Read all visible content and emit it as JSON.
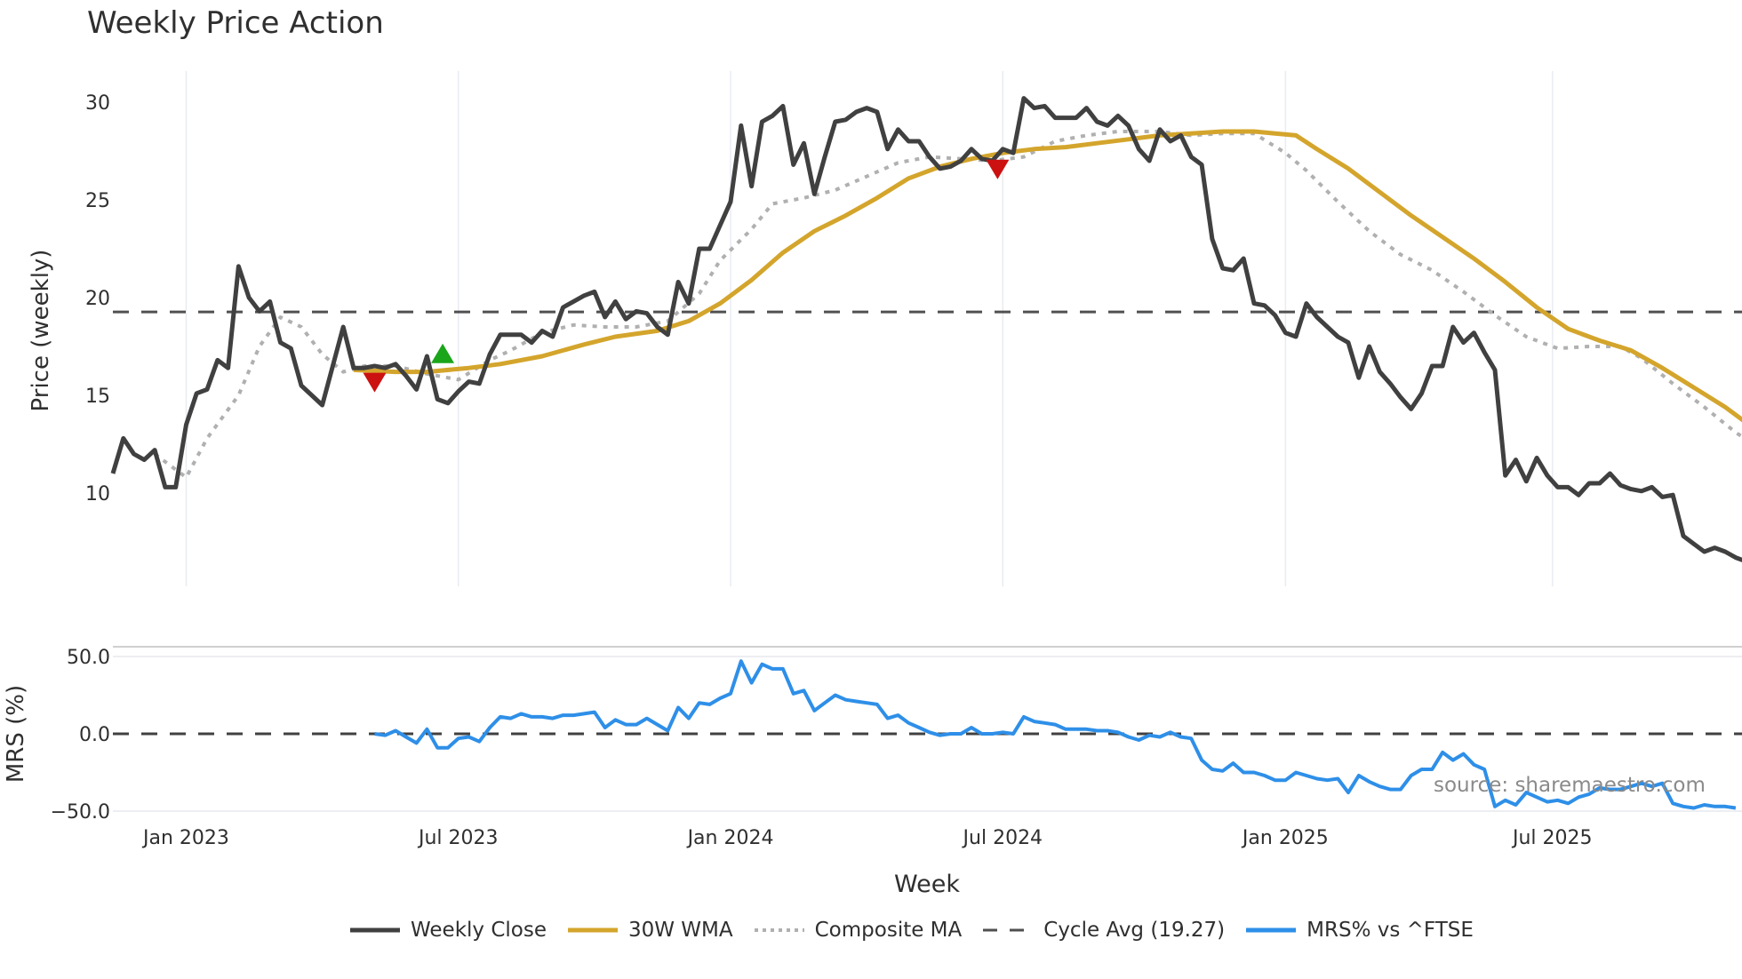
{
  "chart_data": {
    "type": "line",
    "title": "Weekly Price Action",
    "xlabel": "Week",
    "panels": [
      {
        "id": "price",
        "ylabel": "Price (weekly)",
        "yticks": [
          10,
          15,
          20,
          25,
          30
        ],
        "ylim": [
          4.3,
          32.7
        ],
        "grid": "vertical"
      },
      {
        "id": "mrs",
        "ylabel": "MRS (%)",
        "yticks": [
          "50.0",
          "0.0",
          "−50.0"
        ],
        "ytick_values": [
          50,
          0,
          -50
        ],
        "ylim": [
          -55,
          57
        ]
      }
    ],
    "xticks": [
      {
        "label": "Jan 2023",
        "week": 7
      },
      {
        "label": "Jul 2023",
        "week": 33
      },
      {
        "label": "Jan 2024",
        "week": 59
      },
      {
        "label": "Jul 2024",
        "week": 85
      },
      {
        "label": "Jan 2025",
        "week": 112
      },
      {
        "label": "Jul 2025",
        "week": 137.5
      }
    ],
    "week_count": 157,
    "series": [
      {
        "name": "Weekly Close",
        "color": "#404040",
        "style": "solid",
        "panel": "price",
        "values": [
          11.0,
          12.8,
          12.0,
          11.7,
          12.2,
          10.3,
          10.3,
          13.5,
          15.1,
          15.3,
          16.8,
          16.4,
          21.6,
          20.0,
          19.3,
          19.8,
          17.7,
          17.4,
          15.5,
          15.0,
          14.5,
          16.5,
          18.5,
          16.4,
          16.4,
          16.5,
          16.4,
          16.6,
          16.0,
          15.3,
          17.0,
          14.8,
          14.6,
          15.2,
          15.7,
          15.6,
          17.1,
          18.1,
          18.1,
          18.1,
          17.7,
          18.3,
          18.0,
          19.5,
          19.8,
          20.1,
          20.3,
          19.0,
          19.8,
          18.9,
          19.3,
          19.2,
          18.5,
          18.1,
          20.8,
          19.7,
          22.5,
          22.5,
          23.7,
          24.9,
          28.8,
          25.7,
          29.0,
          29.3,
          29.8,
          26.8,
          27.9,
          25.3,
          27.2,
          29.0,
          29.1,
          29.5,
          29.7,
          29.5,
          27.6,
          28.6,
          28.0,
          28.0,
          27.2,
          26.6,
          26.7,
          27.0,
          27.6,
          27.1,
          27.0,
          27.6,
          27.4,
          30.2,
          29.7,
          29.8,
          29.2,
          29.2,
          29.2,
          29.7,
          29.0,
          28.8,
          29.3,
          28.8,
          27.6,
          27.0,
          28.6,
          28.0,
          28.3,
          27.2,
          26.8,
          23.0,
          21.5,
          21.4,
          22.0,
          19.7,
          19.6,
          19.1,
          18.2,
          18.0,
          19.7,
          19.0,
          18.5,
          18.0,
          17.7,
          15.9,
          17.5,
          16.2,
          15.6,
          14.9,
          14.3,
          15.1,
          16.5,
          16.5,
          18.5,
          17.7,
          18.2,
          17.2,
          16.3,
          10.9,
          11.7,
          10.6,
          11.8,
          10.9,
          10.3,
          10.3,
          9.9,
          10.5,
          10.5,
          11.0,
          10.4,
          10.2,
          10.1,
          10.3,
          9.8,
          9.9,
          7.8,
          7.4,
          7.0,
          7.2,
          7.0,
          6.7,
          6.5
        ]
      },
      {
        "name": "30W WMA",
        "color": "#D4A52C",
        "style": "solid",
        "panel": "price",
        "points": [
          [
            23,
            16.3
          ],
          [
            27,
            16.2
          ],
          [
            30,
            16.2
          ],
          [
            34,
            16.4
          ],
          [
            37,
            16.6
          ],
          [
            41,
            17.0
          ],
          [
            45,
            17.6
          ],
          [
            48,
            18.0
          ],
          [
            52,
            18.3
          ],
          [
            55,
            18.8
          ],
          [
            58,
            19.7
          ],
          [
            61,
            20.9
          ],
          [
            64,
            22.3
          ],
          [
            67,
            23.4
          ],
          [
            70,
            24.2
          ],
          [
            73,
            25.1
          ],
          [
            76,
            26.1
          ],
          [
            79,
            26.7
          ],
          [
            82,
            27.1
          ],
          [
            85,
            27.4
          ],
          [
            88,
            27.6
          ],
          [
            91,
            27.7
          ],
          [
            94,
            27.9
          ],
          [
            97,
            28.1
          ],
          [
            100,
            28.3
          ],
          [
            103,
            28.4
          ],
          [
            106,
            28.5
          ],
          [
            109,
            28.5
          ],
          [
            111,
            28.4
          ],
          [
            113,
            28.3
          ],
          [
            115,
            27.6
          ],
          [
            118,
            26.6
          ],
          [
            121,
            25.4
          ],
          [
            124,
            24.2
          ],
          [
            127,
            23.1
          ],
          [
            130,
            22.0
          ],
          [
            133,
            20.8
          ],
          [
            136,
            19.5
          ],
          [
            139,
            18.4
          ],
          [
            142,
            17.8
          ],
          [
            145,
            17.3
          ],
          [
            148,
            16.4
          ],
          [
            151,
            15.4
          ],
          [
            154,
            14.4
          ],
          [
            156,
            13.6
          ]
        ]
      },
      {
        "name": "Composite MA",
        "color": "#B0B0B0",
        "style": "dotted",
        "panel": "price",
        "points": [
          [
            4,
            12.0
          ],
          [
            7,
            10.8
          ],
          [
            9,
            12.8
          ],
          [
            12,
            15.0
          ],
          [
            14,
            17.5
          ],
          [
            16,
            19.0
          ],
          [
            18,
            18.5
          ],
          [
            20,
            17.1
          ],
          [
            22,
            16.2
          ],
          [
            24,
            16.5
          ],
          [
            27,
            16.5
          ],
          [
            30,
            16.1
          ],
          [
            33,
            15.8
          ],
          [
            36,
            16.8
          ],
          [
            38,
            17.3
          ],
          [
            41,
            18.2
          ],
          [
            44,
            18.6
          ],
          [
            47,
            18.5
          ],
          [
            50,
            18.5
          ],
          [
            53,
            18.8
          ],
          [
            56,
            20.2
          ],
          [
            58,
            21.9
          ],
          [
            61,
            23.5
          ],
          [
            63,
            24.8
          ],
          [
            66,
            25.1
          ],
          [
            69,
            25.5
          ],
          [
            72,
            26.2
          ],
          [
            75,
            26.9
          ],
          [
            78,
            27.2
          ],
          [
            81,
            27.1
          ],
          [
            84,
            27.0
          ],
          [
            87,
            27.2
          ],
          [
            90,
            28.0
          ],
          [
            93,
            28.3
          ],
          [
            96,
            28.5
          ],
          [
            100,
            28.5
          ],
          [
            103,
            28.3
          ],
          [
            106,
            28.4
          ],
          [
            109,
            28.4
          ],
          [
            112,
            27.4
          ],
          [
            114,
            26.5
          ],
          [
            117,
            24.9
          ],
          [
            120,
            23.4
          ],
          [
            123,
            22.2
          ],
          [
            126,
            21.4
          ],
          [
            129,
            20.3
          ],
          [
            132,
            19.1
          ],
          [
            135,
            18.0
          ],
          [
            138,
            17.4
          ],
          [
            141,
            17.5
          ],
          [
            144,
            17.5
          ],
          [
            146,
            16.9
          ],
          [
            149,
            15.6
          ],
          [
            152,
            14.4
          ],
          [
            155,
            13.1
          ],
          [
            157,
            12.4
          ]
        ]
      },
      {
        "name": "Cycle Avg (19.27)",
        "color": "#505050",
        "style": "dashed",
        "panel": "price",
        "value": 19.27
      },
      {
        "name": "MRS% vs ^FTSE",
        "color": "#2E8FE8",
        "style": "solid",
        "panel": "mrs",
        "values_start_week": 25,
        "values": [
          0,
          -1,
          2,
          -2,
          -6,
          3,
          -9,
          -9,
          -3,
          -2,
          -5,
          4,
          11,
          10,
          13,
          11,
          11,
          10,
          12,
          12,
          13,
          14,
          4,
          9,
          6,
          6,
          10,
          6,
          2,
          17,
          10,
          20,
          19,
          23,
          26,
          47,
          33,
          45,
          42,
          42,
          26,
          28,
          15,
          20,
          25,
          22,
          21,
          20,
          19,
          10,
          12,
          7,
          4,
          1,
          -1,
          0,
          0,
          4,
          0,
          0,
          1,
          0,
          11,
          8,
          7,
          6,
          3,
          3,
          3,
          2,
          2,
          1,
          -2,
          -4,
          -1,
          -2,
          1,
          -2,
          -3,
          -17,
          -23,
          -24,
          -19,
          -25,
          -25,
          -27,
          -30,
          -30,
          -25,
          -27,
          -29,
          -30,
          -29,
          -38,
          -27,
          -31,
          -34,
          -36,
          -36,
          -27,
          -23,
          -23,
          -12,
          -17,
          -13,
          -20,
          -23,
          -47,
          -43,
          -46,
          -38,
          -41,
          -44,
          -43,
          -45,
          -41,
          -39,
          -35,
          -36,
          -36,
          -34,
          -32,
          -34,
          -32,
          -45,
          -47,
          -48,
          -46,
          -47,
          -47,
          -48
        ]
      },
      {
        "name": "MRS zero line",
        "color": "#404040",
        "style": "dashed",
        "panel": "mrs",
        "value": 0
      }
    ],
    "markers": [
      {
        "type": "sell",
        "shape": "triangle-down",
        "color": "#CC1111",
        "week": 25,
        "value": 15.7
      },
      {
        "type": "buy",
        "shape": "triangle-up",
        "color": "#1AA51A",
        "week": 31.5,
        "value": 17.1
      },
      {
        "type": "sell",
        "shape": "triangle-down",
        "color": "#CC1111",
        "week": 84.5,
        "value": 26.6
      }
    ],
    "annotations": [
      {
        "text": "source: sharemaestro.com",
        "panel": "mrs"
      }
    ],
    "legend": {
      "position": "bottom"
    }
  },
  "title": "Weekly Price Action",
  "axes": {
    "price_ylabel": "Price (weekly)",
    "mrs_ylabel": "MRS (%)",
    "xlabel": "Week"
  },
  "source_text": "source: sharemaestro.com",
  "legend": [
    {
      "label": "Weekly Close",
      "color": "#404040",
      "style": "solid"
    },
    {
      "label": "30W WMA",
      "color": "#D4A52C",
      "style": "solid"
    },
    {
      "label": "Composite MA",
      "color": "#B0B0B0",
      "style": "dotted"
    },
    {
      "label": "Cycle Avg (19.27)",
      "color": "#505050",
      "style": "dashed"
    },
    {
      "label": "MRS% vs ^FTSE",
      "color": "#2E8FE8",
      "style": "solid"
    }
  ]
}
